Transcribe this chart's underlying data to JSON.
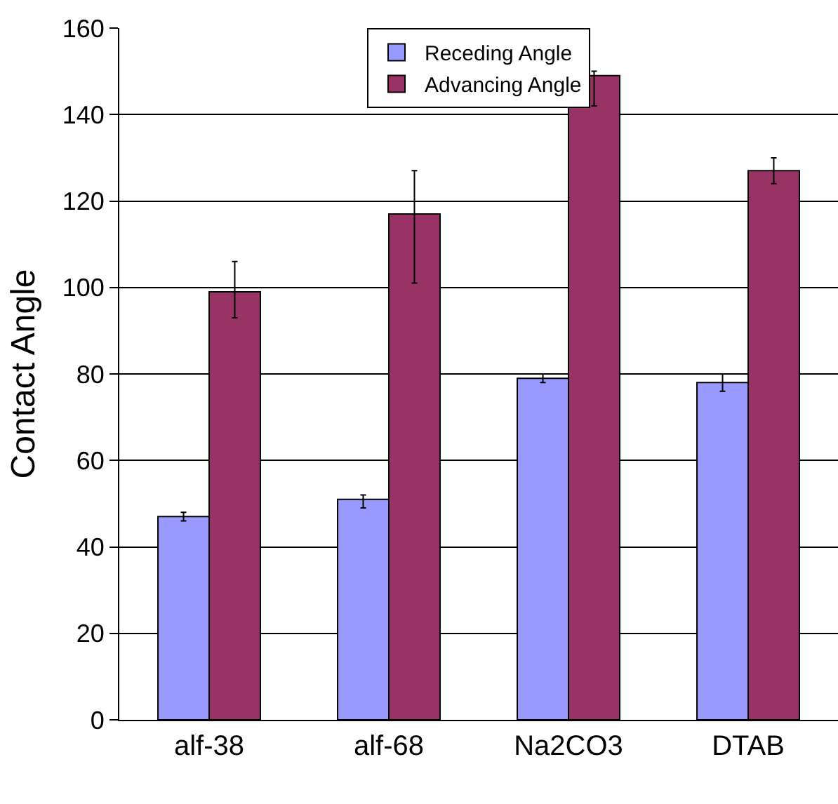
{
  "chart_data": {
    "type": "bar",
    "ylabel": "Contact Angle",
    "categories": [
      "alf-38",
      "alf-68",
      "Na2CO3",
      "DTAB"
    ],
    "series": [
      {
        "name": "Receding Angle",
        "color": "#9999ff",
        "values": [
          47,
          51,
          79,
          78
        ],
        "errors": [
          [
            46,
            48
          ],
          [
            49,
            52
          ],
          [
            78,
            80
          ],
          [
            76,
            80
          ]
        ]
      },
      {
        "name": "Advancing Angle",
        "color": "#993366",
        "values": [
          99,
          117,
          149,
          127
        ],
        "errors": [
          [
            93,
            106
          ],
          [
            101,
            127
          ],
          [
            142,
            150
          ],
          [
            124,
            130
          ]
        ]
      }
    ],
    "ylim": [
      0,
      160
    ],
    "yticks": [
      0,
      20,
      40,
      60,
      80,
      100,
      120,
      140,
      160
    ],
    "grid": "y",
    "legend": "top"
  }
}
